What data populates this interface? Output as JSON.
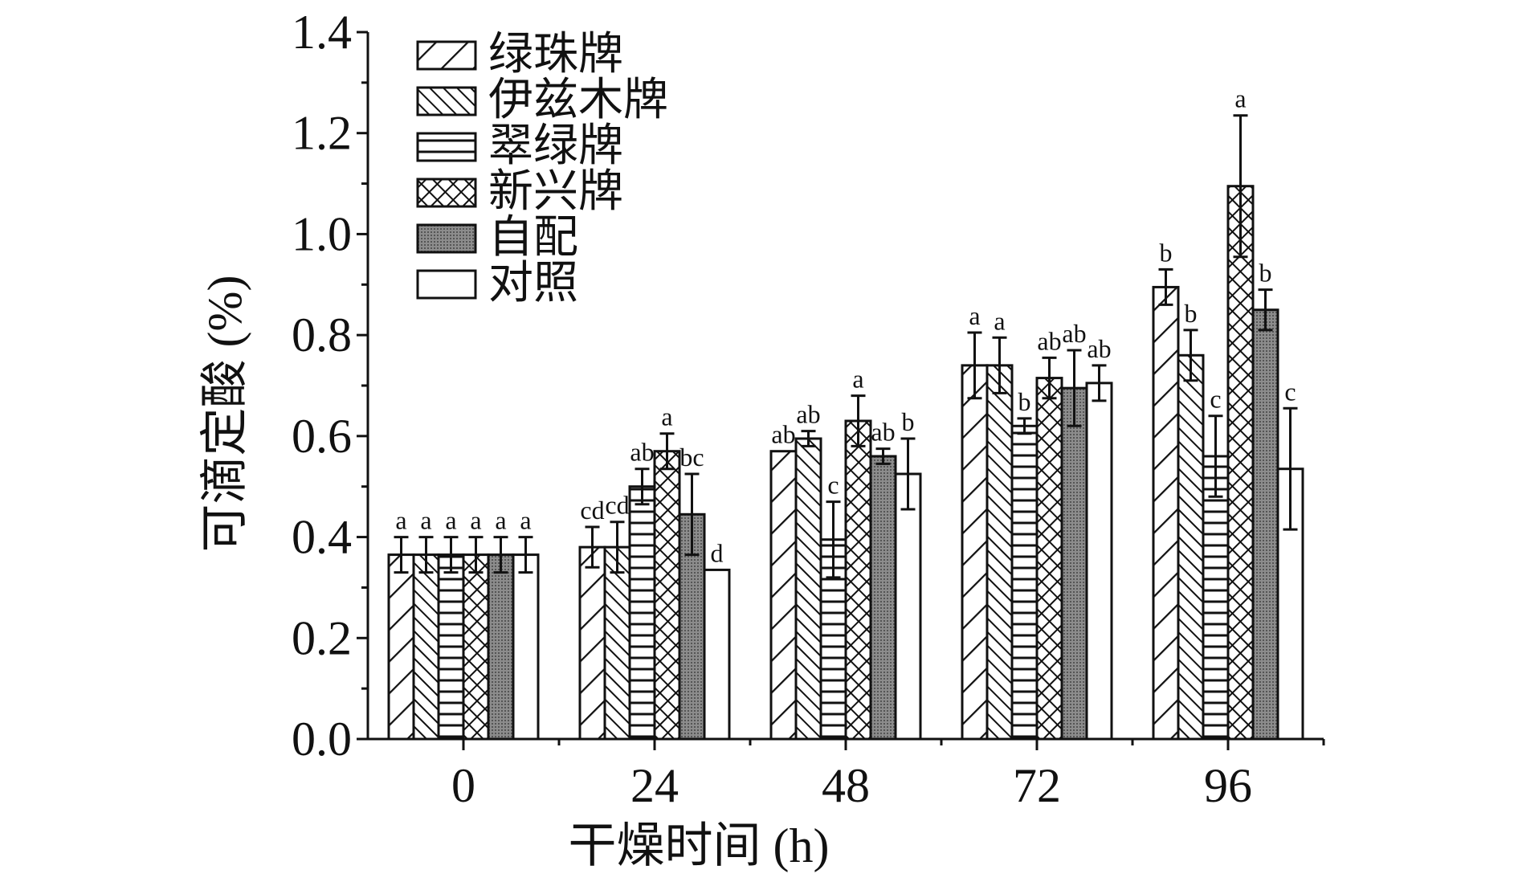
{
  "chart_data": {
    "type": "bar",
    "xlabel": "干燥时间 (h)",
    "ylabel": "可滴定酸 (%)",
    "ylim": [
      0,
      1.4
    ],
    "yticks": [
      "0.0",
      "0.2",
      "0.4",
      "0.6",
      "0.8",
      "1.0",
      "1.2",
      "1.4"
    ],
    "categories": [
      "0",
      "24",
      "48",
      "72",
      "96"
    ],
    "legend_position": "top-left",
    "grid": false,
    "series": [
      {
        "name": "绿珠牌",
        "pattern": "diagonal-forward",
        "values": [
          0.365,
          0.38,
          0.57,
          0.74,
          0.895
        ],
        "errors": [
          0.035,
          0.04,
          0.0,
          0.065,
          0.035
        ],
        "labels": [
          "a",
          "cd",
          "ab",
          "a",
          "b"
        ]
      },
      {
        "name": "伊兹木牌",
        "pattern": "diagonal-back",
        "values": [
          0.365,
          0.38,
          0.595,
          0.74,
          0.76
        ],
        "errors": [
          0.035,
          0.05,
          0.015,
          0.055,
          0.05
        ],
        "labels": [
          "a",
          "cd",
          "ab",
          "a",
          "b"
        ]
      },
      {
        "name": "翠绿牌",
        "pattern": "horizontal",
        "values": [
          0.365,
          0.5,
          0.395,
          0.62,
          0.56
        ],
        "errors": [
          0.035,
          0.035,
          0.075,
          0.015,
          0.08
        ],
        "labels": [
          "a",
          "ab",
          "c",
          "b",
          "c"
        ]
      },
      {
        "name": "新兴牌",
        "pattern": "crosshatch",
        "values": [
          0.365,
          0.57,
          0.63,
          0.715,
          1.095
        ],
        "errors": [
          0.035,
          0.035,
          0.05,
          0.04,
          0.14
        ],
        "labels": [
          "a",
          "a",
          "a",
          "ab",
          "a"
        ]
      },
      {
        "name": "自配",
        "pattern": "dotted-gray",
        "values": [
          0.365,
          0.445,
          0.56,
          0.695,
          0.85
        ],
        "errors": [
          0.035,
          0.08,
          0.015,
          0.075,
          0.04
        ],
        "labels": [
          "a",
          "bc",
          "ab",
          "ab",
          "b"
        ]
      },
      {
        "name": "对照",
        "pattern": "solid-white",
        "values": [
          0.365,
          0.335,
          0.525,
          0.705,
          0.535
        ],
        "errors": [
          0.035,
          0.0,
          0.07,
          0.035,
          0.12
        ],
        "labels": [
          "a",
          "d",
          "b",
          "ab",
          "c"
        ]
      }
    ]
  }
}
